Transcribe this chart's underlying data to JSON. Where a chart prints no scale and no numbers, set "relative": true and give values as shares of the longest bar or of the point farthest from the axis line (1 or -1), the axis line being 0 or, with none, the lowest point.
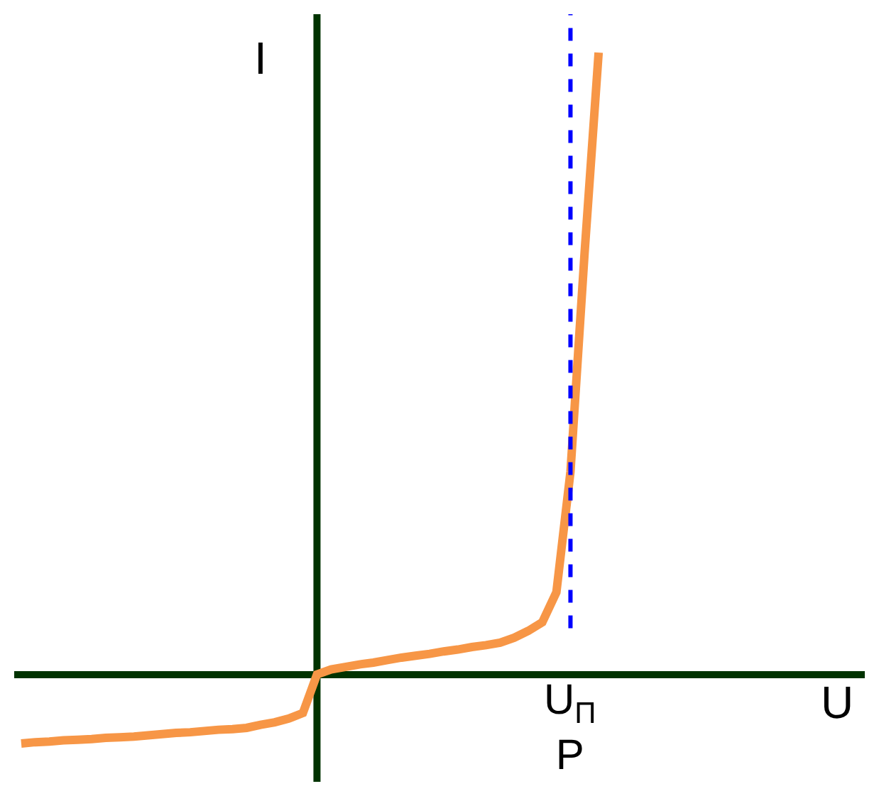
{
  "chart_data": {
    "type": "line",
    "relative": true,
    "xlabel": "U",
    "ylabel": "I",
    "categories": [
      null,
      null,
      null,
      null,
      null,
      null,
      null,
      null,
      null,
      null,
      null,
      null,
      null,
      null,
      null,
      null,
      null,
      null,
      null,
      null,
      null,
      null,
      null,
      null,
      null,
      null,
      null,
      null,
      null,
      null,
      null,
      null,
      null,
      null,
      null,
      null,
      null,
      null,
      null,
      null,
      null,
      null
    ],
    "series": [
      {
        "color": "#f79646",
        "values": [
          -0.111,
          -0.109,
          -0.108,
          -0.106,
          -0.105,
          -0.104,
          -0.102,
          -0.101,
          -0.1,
          -0.098,
          -0.096,
          -0.094,
          -0.093,
          -0.091,
          -0.089,
          -0.088,
          -0.086,
          -0.081,
          -0.077,
          -0.071,
          -0.062,
          0,
          0.008,
          0.012,
          0.016,
          0.019,
          0.023,
          0.027,
          0.03,
          0.033,
          0.037,
          0.04,
          0.044,
          0.047,
          0.051,
          0.059,
          0.07,
          0.084,
          0.132,
          0.326,
          0.677,
          1.0
        ]
      }
    ],
    "annotations": [
      "U$_{П}$\nР"
    ],
    "grid": false,
    "marker": "none",
    "line_style": "solid"
  }
}
